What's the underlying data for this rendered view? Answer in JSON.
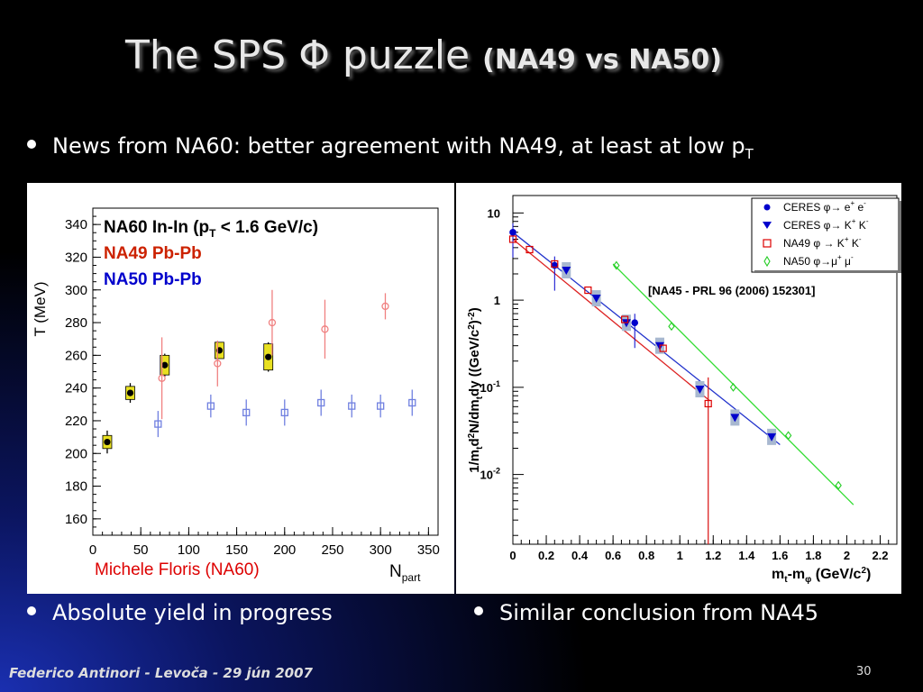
{
  "slide": {
    "title_main": "The SPS Φ puzzle",
    "title_sub": "(NA49 vs NA50)",
    "bullet1_text": "News from NA60: better agreement with NA49, at least at low p",
    "bullet1_sub": "T",
    "bullet2": "Absolute yield in progress",
    "bullet3": "Similar conclusion from NA45",
    "footer": "Federico Antinori - Levoča - 29 jún 2007",
    "page": "30"
  },
  "colors": {
    "na60": "#000000",
    "na49": "#cc2200",
    "na50": "#0000cc",
    "na60_box": "#e8e020"
  },
  "chart_data": [
    {
      "type": "scatter",
      "xlabel": "N",
      "xlabel_sub": "part",
      "ylabel": "T (MeV)",
      "xlim": [
        0,
        360
      ],
      "ylim": [
        150,
        350
      ],
      "xticks": [
        0,
        50,
        100,
        150,
        200,
        250,
        300,
        350
      ],
      "yticks": [
        160,
        180,
        200,
        220,
        240,
        260,
        280,
        300,
        320,
        340
      ],
      "legend": [
        {
          "label": "NA60 In-In (p",
          "sub": "T",
          "suffix": " < 1.6 GeV/c)",
          "color": "#000000"
        },
        {
          "label": "NA49 Pb-Pb",
          "color": "#cc2200"
        },
        {
          "label": "NA50 Pb-Pb",
          "color": "#0000cc"
        }
      ],
      "credit": "Michele Floris (NA60)",
      "series": [
        {
          "name": "NA60 In-In",
          "points": [
            {
              "x": 15,
              "y": 207,
              "err": 7,
              "sys": 4
            },
            {
              "x": 39,
              "y": 237,
              "err": 6,
              "sys": 4
            },
            {
              "x": 75,
              "y": 254,
              "err": 7,
              "sys": 6
            },
            {
              "x": 132,
              "y": 263,
              "err": 5,
              "sys": 5
            },
            {
              "x": 183,
              "y": 259,
              "err": 9,
              "sys": 8
            }
          ]
        },
        {
          "name": "NA49 Pb-Pb",
          "points": [
            {
              "x": 72,
              "y": 246,
              "err": 25
            },
            {
              "x": 130,
              "y": 255,
              "err": 14
            },
            {
              "x": 187,
              "y": 280,
              "err": 20
            },
            {
              "x": 242,
              "y": 276,
              "err": 18
            },
            {
              "x": 305,
              "y": 290,
              "err": 8
            }
          ]
        },
        {
          "name": "NA50 Pb-Pb",
          "points": [
            {
              "x": 68,
              "y": 218,
              "err": 8
            },
            {
              "x": 123,
              "y": 229,
              "err": 7
            },
            {
              "x": 160,
              "y": 225,
              "err": 8
            },
            {
              "x": 200,
              "y": 225,
              "err": 8
            },
            {
              "x": 238,
              "y": 231,
              "err": 8
            },
            {
              "x": 270,
              "y": 229,
              "err": 7
            },
            {
              "x": 300,
              "y": 229,
              "err": 7
            },
            {
              "x": 333,
              "y": 231,
              "err": 8
            }
          ]
        }
      ]
    },
    {
      "type": "scatter",
      "xlabel": "m",
      "xlabel_sub1": "t",
      "xlabel_mid": "-m",
      "xlabel_sub2": "φ",
      "xlabel_end": " (GeV/c",
      "xlabel_sup": "2",
      "xlabel_close": ")",
      "ylabel": "1/m",
      "ylabel_sub": "t",
      "ylabel_mid1": "d",
      "ylabel_sup1": "2",
      "ylabel_mid2": "N/dm",
      "ylabel_sub2": "t",
      "ylabel_mid3": "dy ((GeV/c",
      "ylabel_sup2": "2",
      "ylabel_mid4": ")",
      "ylabel_sup3": "-2",
      "ylabel_end": ")",
      "xlim": [
        0,
        2.3
      ],
      "ylim_log10": [
        -2.8,
        1.2
      ],
      "xticks": [
        "0",
        "0.2",
        "0.4",
        "0.6",
        "0.8",
        "1",
        "1.2",
        "1.4",
        "1.6",
        "1.8",
        "2",
        "2.2"
      ],
      "yticks": [
        {
          "v": 1,
          "base": "10",
          "exp": ""
        },
        {
          "v": 0,
          "base": "1",
          "exp": ""
        },
        {
          "v": -1,
          "base": "10",
          "exp": "-1"
        },
        {
          "v": -2,
          "base": "10",
          "exp": "-2"
        }
      ],
      "annotation": "[NA45 - PRL 96 (2006) 152301]",
      "legend": [
        {
          "label": "CERES φ→ e",
          "sup1": "+",
          "mid": " e",
          "sup2": "-",
          "color": "#0000cc",
          "marker": "circle"
        },
        {
          "label": "CERES φ→ K",
          "sup1": "+",
          "mid": " K",
          "sup2": "-",
          "color": "#0000cc",
          "marker": "triangle"
        },
        {
          "label": "NA49 φ → K",
          "sup1": "+",
          "mid": " K",
          "sup2": "-",
          "color": "#dd0000",
          "marker": "square"
        },
        {
          "label": "NA50 φ→μ",
          "sup1": "+",
          "mid": " μ",
          "sup2": "-",
          "color": "#22cc22",
          "marker": "diamond"
        }
      ],
      "series": [
        {
          "name": "CERES φ→ e+ e-",
          "points": [
            {
              "x": 0.0,
              "y": 6.0
            },
            {
              "x": 0.25,
              "y": 2.5
            },
            {
              "x": 0.73,
              "y": 0.55
            }
          ]
        },
        {
          "name": "CERES φ→ K+ K-",
          "points": [
            {
              "x": 0.32,
              "y": 2.2
            },
            {
              "x": 0.5,
              "y": 1.05
            },
            {
              "x": 0.68,
              "y": 0.55
            },
            {
              "x": 0.88,
              "y": 0.3
            },
            {
              "x": 1.12,
              "y": 0.095
            },
            {
              "x": 1.33,
              "y": 0.045
            },
            {
              "x": 1.55,
              "y": 0.027
            }
          ]
        },
        {
          "name": "NA49 φ → K+ K-",
          "points": [
            {
              "x": 0.0,
              "y": 5.0
            },
            {
              "x": 0.1,
              "y": 3.8
            },
            {
              "x": 0.25,
              "y": 2.6
            },
            {
              "x": 0.45,
              "y": 1.3
            },
            {
              "x": 0.67,
              "y": 0.6
            },
            {
              "x": 0.9,
              "y": 0.28
            },
            {
              "x": 1.17,
              "y": 0.065
            }
          ]
        },
        {
          "name": "NA50 φ→μ+ μ-",
          "points": [
            {
              "x": 0.62,
              "y": 2.5
            },
            {
              "x": 0.95,
              "y": 0.5
            },
            {
              "x": 1.32,
              "y": 0.1
            },
            {
              "x": 1.65,
              "y": 0.028
            },
            {
              "x": 1.95,
              "y": 0.0075
            }
          ]
        }
      ]
    }
  ]
}
